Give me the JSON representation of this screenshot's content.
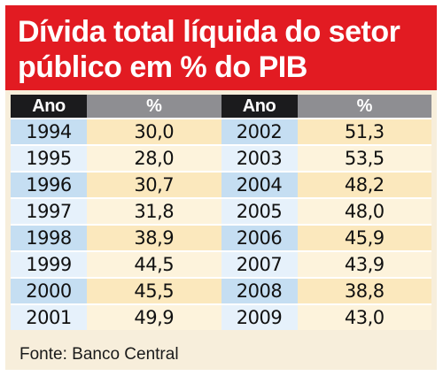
{
  "title_lines": [
    "Dívida total líquida do setor",
    "público em % do PIB"
  ],
  "colors": {
    "header_bg": "#e21b22",
    "year_col": "#c5def2",
    "value_col": "#fbe8bd",
    "head_year": "#1b1b1d",
    "head_value": "#8e8e92"
  },
  "chart_data": {
    "type": "table",
    "title": "Dívida total líquida do setor público em % do PIB",
    "columns": [
      "Ano",
      "%",
      "Ano",
      "%"
    ],
    "rows": [
      {
        "year_left": "1994",
        "value_left": "30,0",
        "year_right": "2002",
        "value_right": "51,3"
      },
      {
        "year_left": "1995",
        "value_left": "28,0",
        "year_right": "2003",
        "value_right": "53,5"
      },
      {
        "year_left": "1996",
        "value_left": "30,7",
        "year_right": "2004",
        "value_right": "48,2"
      },
      {
        "year_left": "1997",
        "value_left": "31,8",
        "year_right": "2005",
        "value_right": "48,0"
      },
      {
        "year_left": "1998",
        "value_left": "38,9",
        "year_right": "2006",
        "value_right": "45,9"
      },
      {
        "year_left": "1999",
        "value_left": "44,5",
        "year_right": "2007",
        "value_right": "43,9"
      },
      {
        "year_left": "2000",
        "value_left": "45,5",
        "year_right": "2008",
        "value_right": "38,8"
      },
      {
        "year_left": "2001",
        "value_left": "49,9",
        "year_right": "2009",
        "value_right": "43,0"
      }
    ],
    "source": "Fonte: Banco Central"
  }
}
